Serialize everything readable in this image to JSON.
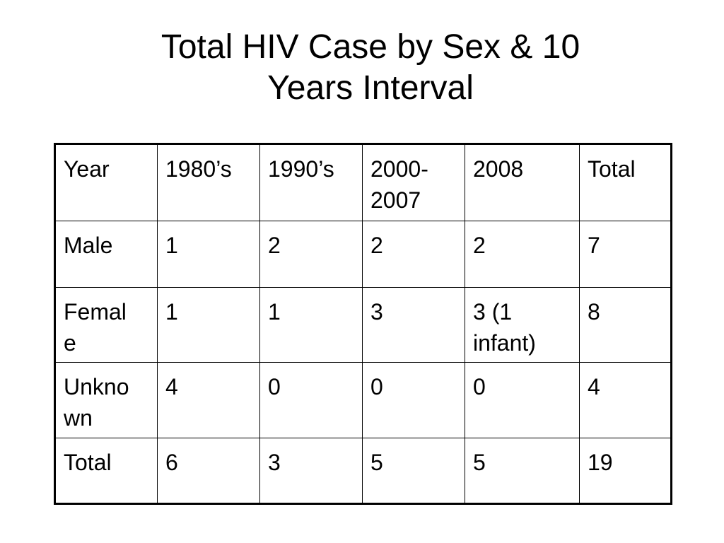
{
  "slide": {
    "title_line1": "Total HIV Case by Sex & 10",
    "title_line2": "Years Interval"
  },
  "table": {
    "header": [
      "Year",
      "1980’s",
      "1990’s",
      "2000-\n2007",
      "2008",
      "Total"
    ],
    "rows": [
      [
        "Male",
        "1",
        "2",
        "2",
        "2",
        "7"
      ],
      [
        "Femal\ne",
        "1",
        "1",
        "3",
        "3 (1\ninfant)",
        "8"
      ],
      [
        "Unkno\nwn",
        "4",
        "0",
        "0",
        "0",
        "4"
      ],
      [
        "Total",
        "6",
        "3",
        "5",
        "5",
        "19"
      ]
    ]
  }
}
